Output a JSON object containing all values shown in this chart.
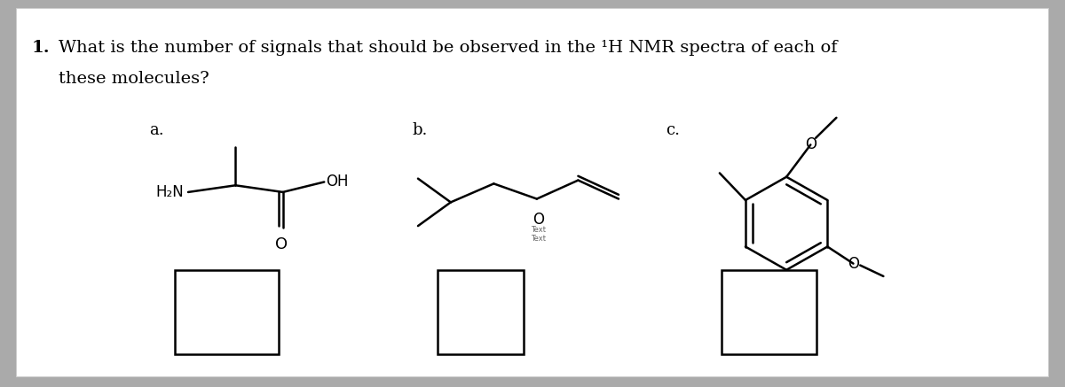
{
  "background_color": "#ffffff",
  "outer_background": "#aaaaaa",
  "text_color": "#000000",
  "line_color": "#000000",
  "font_family": "DejaVu Serif",
  "question_text_line1": "1.   What is the number of signals that should be observed in the ¹H NMR spectra of each of",
  "question_text_line2": "     these molecules?",
  "label_a": "a.",
  "label_b": "b.",
  "label_c": "c.",
  "text_text": "Text\nText"
}
